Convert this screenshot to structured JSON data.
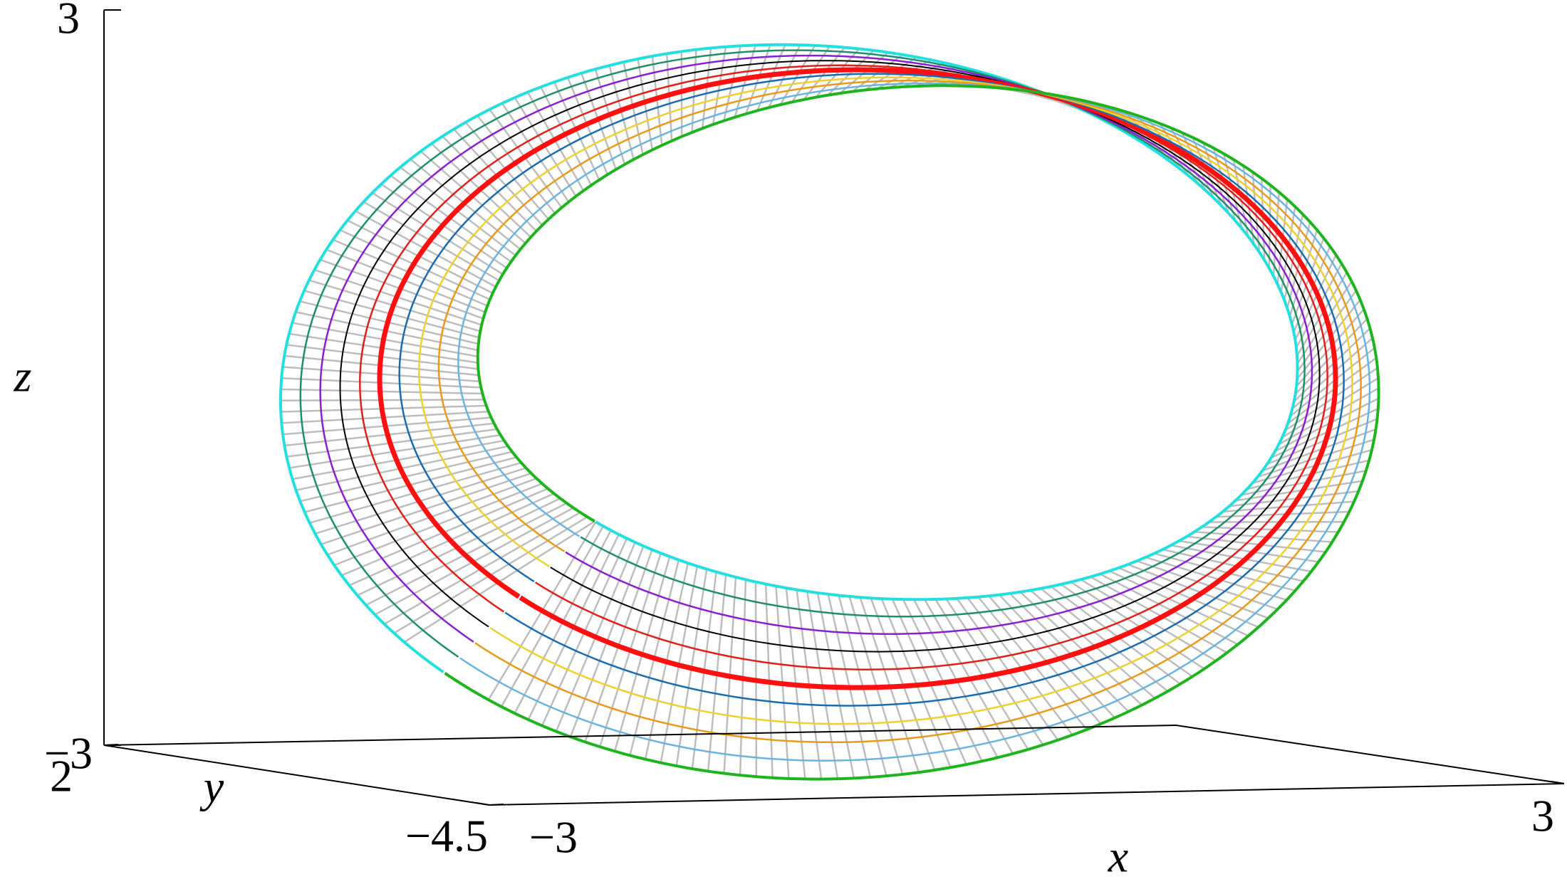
{
  "chart_data": {
    "type": "surface3d",
    "xlabel": "x",
    "ylabel": "y",
    "zlabel": "z",
    "xlim": [
      -3,
      3
    ],
    "xticks": [
      {
        "value": -3,
        "label": "−3"
      },
      3
    ],
    "ylim": [
      -4.5,
      2
    ],
    "yticks": [
      {
        "value": -4.5,
        "label": "−4.5"
      },
      2
    ],
    "zlim": [
      -3,
      3
    ],
    "zticks": [
      {
        "value": -3,
        "label": "−3"
      },
      3
    ]
  }
}
